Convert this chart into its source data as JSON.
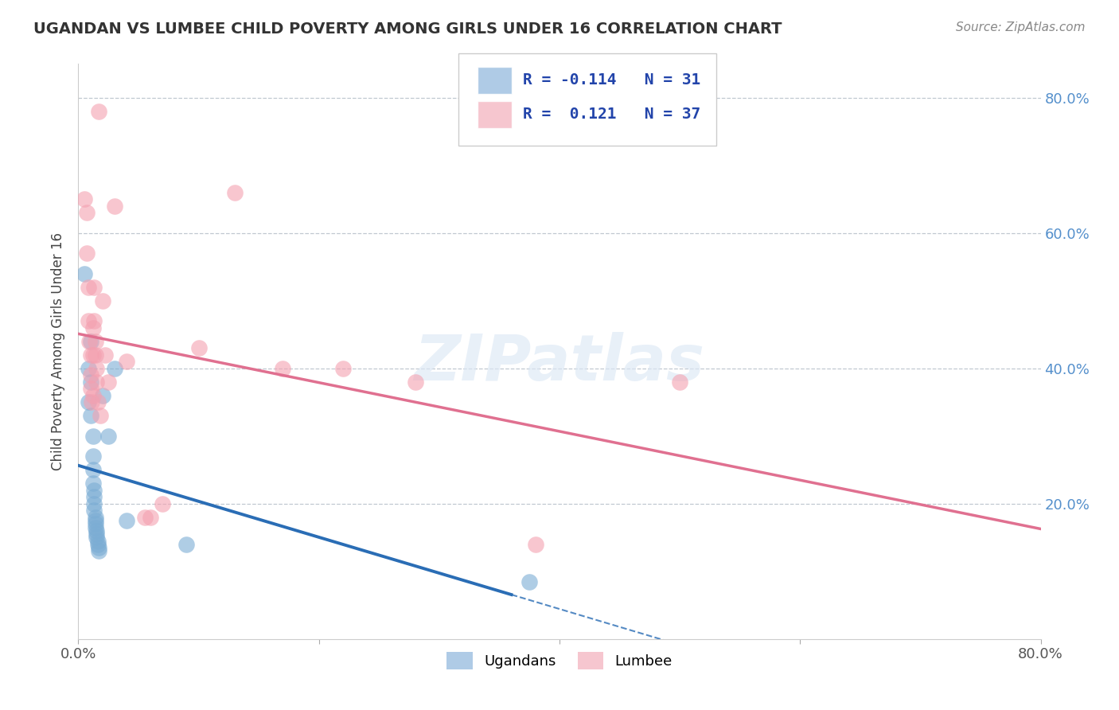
{
  "title": "UGANDAN VS LUMBEE CHILD POVERTY AMONG GIRLS UNDER 16 CORRELATION CHART",
  "source": "Source: ZipAtlas.com",
  "ylabel": "Child Poverty Among Girls Under 16",
  "xlim": [
    0,
    0.8
  ],
  "ylim": [
    0,
    0.85
  ],
  "xtick_vals": [
    0.0,
    0.2,
    0.4,
    0.6,
    0.8
  ],
  "xtick_labels": [
    "0.0%",
    "",
    "",
    "",
    "80.0%"
  ],
  "ytick_vals": [
    0.2,
    0.4,
    0.6,
    0.8
  ],
  "ytick_labels": [
    "20.0%",
    "40.0%",
    "60.0%",
    "80.0%"
  ],
  "watermark": "ZIPatlas",
  "ugandan_color": "#7BADD4",
  "lumbee_color": "#F4A0B0",
  "ugandan_line_color": "#2A6DB5",
  "lumbee_line_color": "#E07090",
  "ugandan_R": -0.114,
  "ugandan_N": 31,
  "lumbee_R": 0.121,
  "lumbee_N": 37,
  "legend_ugandan_color": "#9BBFE0",
  "legend_lumbee_color": "#F4B8C4",
  "ugandan_scatter": [
    [
      0.005,
      0.54
    ],
    [
      0.008,
      0.4
    ],
    [
      0.008,
      0.35
    ],
    [
      0.01,
      0.44
    ],
    [
      0.01,
      0.38
    ],
    [
      0.01,
      0.33
    ],
    [
      0.012,
      0.3
    ],
    [
      0.012,
      0.27
    ],
    [
      0.012,
      0.25
    ],
    [
      0.012,
      0.23
    ],
    [
      0.013,
      0.22
    ],
    [
      0.013,
      0.21
    ],
    [
      0.013,
      0.2
    ],
    [
      0.013,
      0.19
    ],
    [
      0.014,
      0.18
    ],
    [
      0.014,
      0.175
    ],
    [
      0.014,
      0.17
    ],
    [
      0.014,
      0.165
    ],
    [
      0.015,
      0.16
    ],
    [
      0.015,
      0.155
    ],
    [
      0.015,
      0.15
    ],
    [
      0.016,
      0.145
    ],
    [
      0.016,
      0.14
    ],
    [
      0.017,
      0.135
    ],
    [
      0.017,
      0.13
    ],
    [
      0.02,
      0.36
    ],
    [
      0.025,
      0.3
    ],
    [
      0.03,
      0.4
    ],
    [
      0.04,
      0.175
    ],
    [
      0.09,
      0.14
    ],
    [
      0.375,
      0.085
    ]
  ],
  "lumbee_scatter": [
    [
      0.005,
      0.65
    ],
    [
      0.007,
      0.63
    ],
    [
      0.007,
      0.57
    ],
    [
      0.008,
      0.52
    ],
    [
      0.008,
      0.47
    ],
    [
      0.009,
      0.44
    ],
    [
      0.01,
      0.42
    ],
    [
      0.01,
      0.39
    ],
    [
      0.01,
      0.37
    ],
    [
      0.011,
      0.35
    ],
    [
      0.012,
      0.46
    ],
    [
      0.012,
      0.42
    ],
    [
      0.012,
      0.36
    ],
    [
      0.013,
      0.52
    ],
    [
      0.013,
      0.47
    ],
    [
      0.014,
      0.44
    ],
    [
      0.014,
      0.42
    ],
    [
      0.015,
      0.4
    ],
    [
      0.015,
      0.38
    ],
    [
      0.016,
      0.35
    ],
    [
      0.017,
      0.78
    ],
    [
      0.018,
      0.33
    ],
    [
      0.02,
      0.5
    ],
    [
      0.022,
      0.42
    ],
    [
      0.025,
      0.38
    ],
    [
      0.03,
      0.64
    ],
    [
      0.04,
      0.41
    ],
    [
      0.055,
      0.18
    ],
    [
      0.06,
      0.18
    ],
    [
      0.07,
      0.2
    ],
    [
      0.1,
      0.43
    ],
    [
      0.13,
      0.66
    ],
    [
      0.17,
      0.4
    ],
    [
      0.22,
      0.4
    ],
    [
      0.28,
      0.38
    ],
    [
      0.38,
      0.14
    ],
    [
      0.5,
      0.38
    ]
  ],
  "trend_split_x": 0.36
}
